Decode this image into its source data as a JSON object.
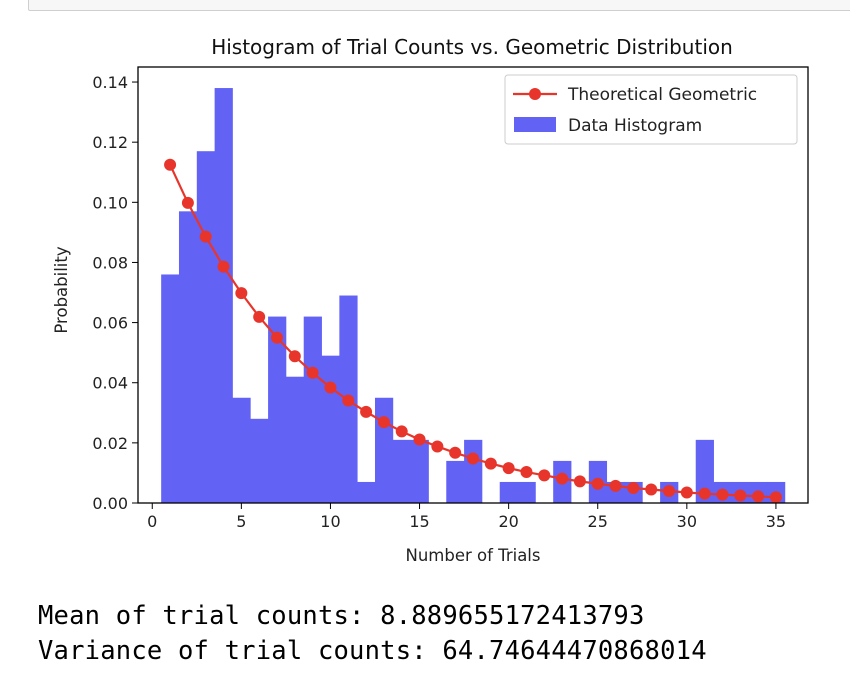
{
  "chart_data": {
    "type": "bar",
    "title": "Histogram of Trial Counts vs. Geometric Distribution",
    "xlabel": "Number of Trials",
    "ylabel": "Probability",
    "xlim": [
      -0.8,
      36.8
    ],
    "ylim": [
      0,
      0.145
    ],
    "xticks": [
      0,
      5,
      10,
      15,
      20,
      25,
      30,
      35
    ],
    "yticks": [
      0.0,
      0.02,
      0.04,
      0.06,
      0.08,
      0.1,
      0.12,
      0.14
    ],
    "xtick_labels": [
      "0",
      "5",
      "10",
      "15",
      "20",
      "25",
      "30",
      "35"
    ],
    "ytick_labels": [
      "0.00",
      "0.02",
      "0.04",
      "0.06",
      "0.08",
      "0.10",
      "0.12",
      "0.14"
    ],
    "legend_position": "top-right",
    "grid": false,
    "histogram": {
      "name": "Data Histogram",
      "color": "#6262f5",
      "bin_edges": [
        0.5,
        1.5,
        2.5,
        3.5,
        4.5,
        5.5,
        6.5,
        7.5,
        8.5,
        9.5,
        10.5,
        11.5,
        12.5,
        13.5,
        14.5,
        15.5,
        16.5,
        17.5,
        18.5,
        19.5,
        20.5,
        21.5,
        22.5,
        23.5,
        24.5,
        25.5,
        26.5,
        27.5,
        28.5,
        29.5,
        30.5,
        31.5,
        32.5,
        33.5,
        34.5,
        35.5
      ],
      "values": [
        0.076,
        0.097,
        0.117,
        0.138,
        0.035,
        0.028,
        0.062,
        0.042,
        0.062,
        0.049,
        0.069,
        0.007,
        0.035,
        0.021,
        0.021,
        0.0,
        0.014,
        0.021,
        0.0,
        0.007,
        0.007,
        0.0,
        0.014,
        0.0,
        0.014,
        0.007,
        0.007,
        0.0,
        0.007,
        0.0,
        0.021,
        0.007,
        0.007,
        0.007,
        0.007
      ]
    },
    "series": [
      {
        "name": "Theoretical Geometric",
        "color": "#e8352b",
        "x": [
          1,
          2,
          3,
          4,
          5,
          6,
          7,
          8,
          9,
          10,
          11,
          12,
          13,
          14,
          15,
          16,
          17,
          18,
          19,
          20,
          21,
          22,
          23,
          24,
          25,
          26,
          27,
          28,
          29,
          30,
          31,
          32,
          33,
          34,
          35
        ],
        "values": [
          0.1125,
          0.0998,
          0.0886,
          0.0786,
          0.0698,
          0.0619,
          0.055,
          0.0488,
          0.0433,
          0.0384,
          0.0341,
          0.0303,
          0.0269,
          0.0238,
          0.0211,
          0.0188,
          0.0167,
          0.0148,
          0.0131,
          0.0116,
          0.0103,
          0.0092,
          0.0081,
          0.0072,
          0.0064,
          0.0057,
          0.005,
          0.0045,
          0.004,
          0.0035,
          0.0031,
          0.0028,
          0.0025,
          0.0022,
          0.0019
        ]
      }
    ]
  },
  "output": {
    "mean_line": "Mean of trial counts: 8.889655172413793",
    "variance_line": "Variance of trial counts: 64.74644470868014"
  }
}
